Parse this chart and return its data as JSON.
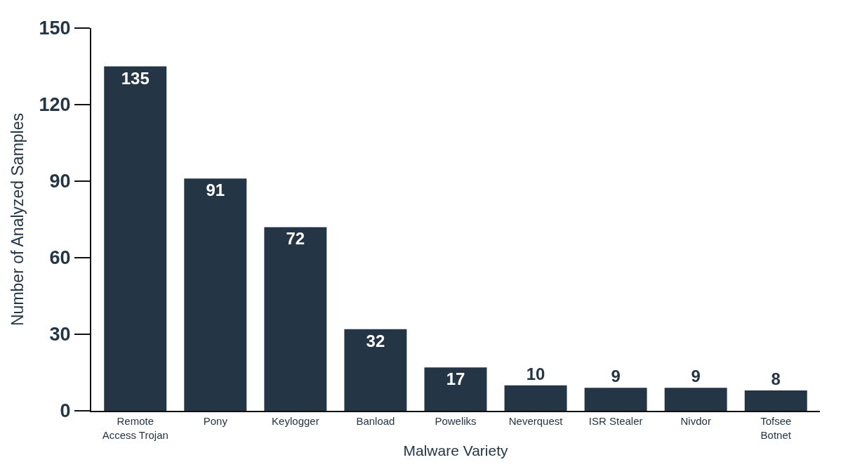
{
  "chart_data": {
    "type": "bar",
    "xlabel": "Malware Variety",
    "ylabel": "Number of Analyzed Samples",
    "categories": [
      "Remote\nAccess Trojan",
      "Pony",
      "Keylogger",
      "Banload",
      "Poweliks",
      "Neverquest",
      "ISR Stealer",
      "Nivdor",
      "Tofsee\nBotnet"
    ],
    "values": [
      135,
      91,
      72,
      32,
      17,
      10,
      9,
      9,
      8
    ],
    "color": "#243545",
    "ylim": [
      0,
      150
    ],
    "yticks": [
      0,
      30,
      60,
      90,
      120,
      150
    ],
    "data_labels": true
  }
}
